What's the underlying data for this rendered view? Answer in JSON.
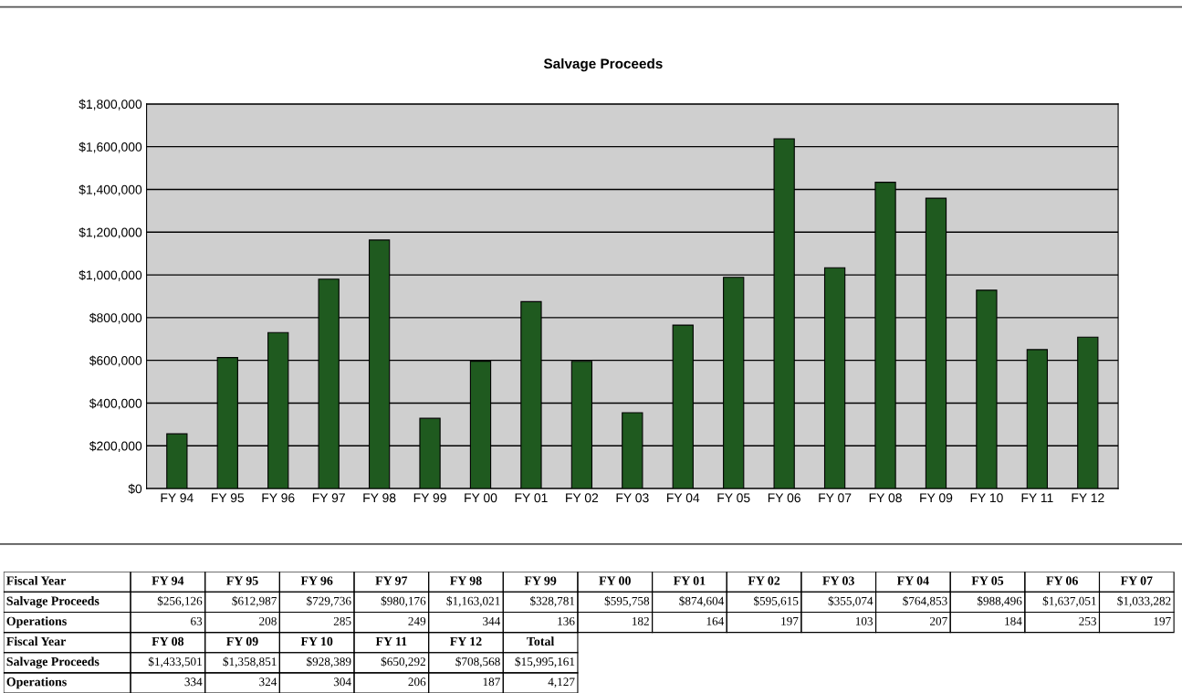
{
  "chart_data": [
    {
      "type": "bar",
      "title": "Salvage Proceeds",
      "categories": [
        "FY 94",
        "FY 95",
        "FY 96",
        "FY 97",
        "FY 98",
        "FY 99",
        "FY 00",
        "FY 01",
        "FY 02",
        "FY 03",
        "FY 04",
        "FY 05",
        "FY 06",
        "FY 07",
        "FY 08",
        "FY 09",
        "FY 10",
        "FY 11",
        "FY 12"
      ],
      "values": [
        256126,
        612987,
        729736,
        980176,
        1163021,
        328781,
        595758,
        874604,
        595615,
        355074,
        764853,
        988496,
        1637051,
        1033282,
        1433501,
        1358851,
        928389,
        650292,
        708568
      ],
      "color": "#1f5a1f",
      "ylim": [
        0,
        1800000
      ],
      "yticks": [
        {
          "value": 0,
          "label": "$0"
        },
        {
          "value": 200000,
          "label": "$200,000"
        },
        {
          "value": 400000,
          "label": "$400,000"
        },
        {
          "value": 600000,
          "label": "$600,000"
        },
        {
          "value": 800000,
          "label": "$800,000"
        },
        {
          "value": 1000000,
          "label": "$1,000,000"
        },
        {
          "value": 1200000,
          "label": "$1,200,000"
        },
        {
          "value": 1400000,
          "label": "$1,400,000"
        },
        {
          "value": 1600000,
          "label": "$1,600,000"
        },
        {
          "value": 1800000,
          "label": "$1,800,000"
        }
      ],
      "grid": "y",
      "legend": false
    },
    {
      "type": "other",
      "categories": [
        "FY 94",
        "FY 95",
        "FY 96",
        "FY 97",
        "FY 98",
        "FY 99",
        "FY 00",
        "FY 01",
        "FY 02",
        "FY 03",
        "FY 04",
        "FY 05",
        "FY 06",
        "FY 07",
        "FY 08",
        "FY 09",
        "FY 10",
        "FY 11",
        "FY 12",
        "Total"
      ],
      "y_categories": [
        "Fiscal Year",
        "Salvage Proceeds",
        "Operations"
      ],
      "cell_labels": [
        [
          "$256,126",
          "$612,987",
          "$729,736",
          "$980,176",
          "$1,163,021",
          "$328,781",
          "$595,758",
          "$874,604",
          "$595,615",
          "$355,074",
          "$764,853",
          "$988,496",
          "$1,637,051",
          "$1,033,282",
          "$1,433,501",
          "$1,358,851",
          "$928,389",
          "$650,292",
          "$708,568",
          "$15,995,161"
        ],
        [
          "63",
          "208",
          "285",
          "249",
          "344",
          "136",
          "182",
          "164",
          "197",
          "103",
          "207",
          "184",
          "253",
          "197",
          "334",
          "324",
          "304",
          "206",
          "187",
          "4,127"
        ]
      ]
    }
  ]
}
